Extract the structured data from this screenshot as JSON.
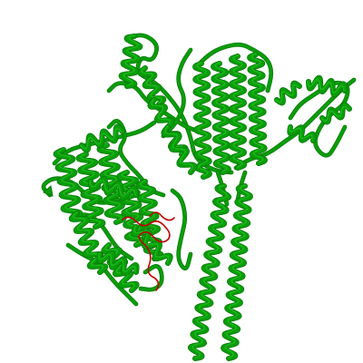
{
  "scene": {
    "background_color": "#ffffff",
    "subject": "protein-ribbon-cartoon",
    "chain_color": "#0a9d0a",
    "chain_highlight_color": "#1ec21e",
    "chain_shadow_color": "#067806",
    "ligand_color": "#c00000"
  }
}
